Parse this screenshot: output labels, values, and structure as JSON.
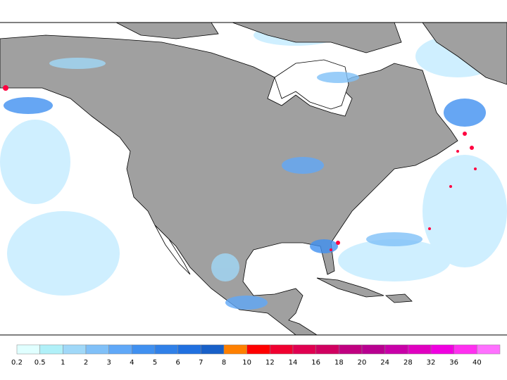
{
  "legend": {
    "levels": [
      {
        "label": "0.2",
        "color": "#e0ffff"
      },
      {
        "label": "0.5",
        "color": "#b0f0f8"
      },
      {
        "label": "1",
        "color": "#a0d8f8"
      },
      {
        "label": "2",
        "color": "#80c0f8"
      },
      {
        "label": "3",
        "color": "#60a8f8"
      },
      {
        "label": "4",
        "color": "#4090f0"
      },
      {
        "label": "5",
        "color": "#3080e8"
      },
      {
        "label": "6",
        "color": "#2070e0"
      },
      {
        "label": "7",
        "color": "#1860c8"
      },
      {
        "label": "8",
        "color": "#ff8000"
      },
      {
        "label": "10",
        "color": "#ff0000"
      },
      {
        "label": "12",
        "color": "#f00030"
      },
      {
        "label": "14",
        "color": "#e00050"
      },
      {
        "label": "16",
        "color": "#d00060"
      },
      {
        "label": "18",
        "color": "#c00080"
      },
      {
        "label": "20",
        "color": "#b80090"
      },
      {
        "label": "24",
        "color": "#c800a8"
      },
      {
        "label": "28",
        "color": "#e000c0"
      },
      {
        "label": "32",
        "color": "#f000e0"
      },
      {
        "label": "36",
        "color": "#ff30f0"
      },
      {
        "label": "40",
        "color": "#ff70ff"
      }
    ]
  }
}
